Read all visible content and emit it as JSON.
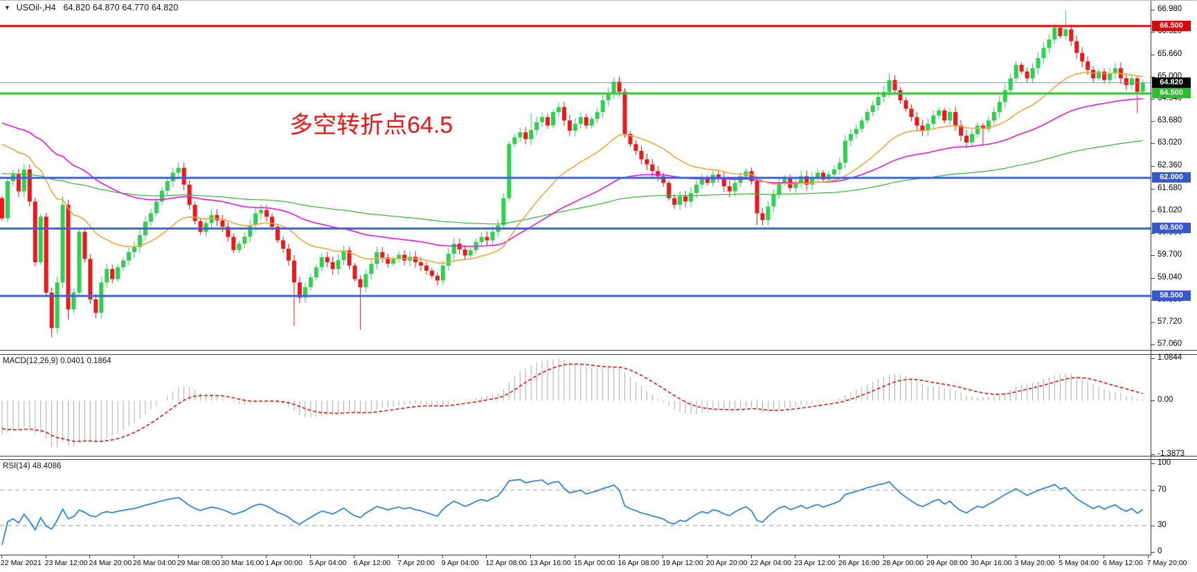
{
  "header": {
    "symbol": "USOil-,H4",
    "quotes": "64.820 64.870 64.770 64.820",
    "dropdown_icon": "symbol-dropdown-icon"
  },
  "annotation": {
    "text": "多空转折点64.5",
    "color": "#F21414"
  },
  "macd": {
    "label": "MACD(12,26,9) 0.0401 0.1864"
  },
  "rsi": {
    "label": "RSI(14) 48.4086"
  },
  "chart_data": [
    {
      "type": "candlestick",
      "title": "USOil-,H4",
      "timeframe": "H4",
      "ylim": [
        56.9,
        67.25
      ],
      "first_open": 61.4,
      "closes": [
        60.8,
        61.9,
        62.1,
        61.6,
        62.25,
        61.3,
        59.5,
        60.85,
        58.6,
        57.55,
        58.9,
        61.2,
        58.1,
        58.6,
        60.4,
        59.6,
        58.4,
        58.0,
        58.9,
        59.3,
        59.0,
        59.35,
        59.55,
        59.8,
        59.95,
        60.3,
        60.7,
        60.95,
        61.3,
        61.62,
        61.9,
        62.15,
        62.3,
        61.8,
        61.2,
        60.72,
        60.4,
        60.66,
        60.9,
        60.74,
        60.55,
        60.25,
        59.86,
        60.05,
        60.26,
        60.6,
        60.95,
        61.05,
        60.85,
        60.55,
        60.15,
        59.9,
        59.55,
        58.9,
        58.45,
        58.76,
        59.05,
        59.35,
        59.65,
        59.5,
        59.3,
        59.56,
        59.85,
        59.4,
        59.0,
        58.76,
        59.15,
        59.45,
        59.8,
        59.64,
        59.46,
        59.6,
        59.72,
        59.55,
        59.66,
        59.5,
        59.4,
        59.25,
        59.1,
        58.96,
        59.4,
        59.75,
        60.05,
        59.88,
        59.7,
        59.86,
        60.1,
        60.25,
        60.15,
        60.4,
        60.6,
        61.4,
        63.0,
        63.2,
        63.35,
        63.15,
        63.42,
        63.65,
        63.8,
        63.55,
        63.95,
        64.1,
        63.7,
        63.4,
        63.6,
        63.8,
        63.55,
        63.75,
        63.95,
        64.3,
        64.5,
        64.85,
        64.55,
        63.3,
        63.0,
        62.8,
        62.55,
        62.4,
        62.2,
        62.05,
        61.85,
        61.4,
        61.2,
        61.45,
        61.3,
        61.55,
        61.8,
        62.0,
        61.85,
        62.1,
        62.0,
        61.75,
        61.6,
        61.85,
        62.05,
        62.2,
        61.9,
        60.95,
        60.75,
        61.15,
        61.5,
        61.85,
        62.0,
        61.7,
        61.85,
        62.05,
        61.8,
        62.0,
        62.15,
        61.95,
        62.1,
        62.25,
        62.45,
        63.1,
        63.3,
        63.45,
        63.7,
        63.95,
        64.15,
        64.4,
        64.55,
        64.9,
        64.6,
        64.3,
        64.05,
        63.8,
        63.55,
        63.4,
        63.6,
        63.85,
        64.0,
        63.7,
        63.95,
        63.55,
        63.25,
        63.05,
        63.3,
        63.55,
        63.45,
        63.7,
        63.95,
        64.25,
        64.6,
        64.95,
        65.35,
        65.15,
        64.95,
        65.25,
        65.55,
        65.85,
        66.1,
        66.45,
        66.2,
        66.4,
        66.05,
        65.7,
        65.45,
        65.2,
        64.95,
        65.15,
        64.9,
        65.1,
        65.25,
        64.95,
        64.75,
        64.95,
        64.55,
        64.82
      ],
      "wick_overrides": {
        "9": [
          null,
          57.28
        ],
        "11": [
          61.45,
          null
        ],
        "12": [
          null,
          57.8
        ],
        "53": [
          null,
          57.62
        ],
        "65": [
          null,
          57.5
        ],
        "79": [
          null,
          58.8
        ],
        "96": [
          63.92,
          null
        ],
        "111": [
          64.97,
          null
        ],
        "137": [
          null,
          60.6
        ],
        "161": [
          65.1,
          null
        ],
        "178": [
          null,
          62.95
        ],
        "193": [
          66.96,
          null
        ],
        "206": [
          null,
          63.92
        ]
      },
      "warmup_anchors": [
        [
          0,
          57.2
        ],
        [
          70,
          59.8
        ],
        [
          100,
          65.2
        ],
        [
          125,
          66.3
        ],
        [
          150,
          63.2
        ],
        [
          159,
          61.5
        ]
      ],
      "bull_color": "#2BD34F",
      "bear_color": "#F01818",
      "moving_averages": [
        {
          "name": "ma-green",
          "period": 160,
          "color": "#33B333",
          "width": 1.2
        },
        {
          "name": "ma-magenta",
          "period": 60,
          "color": "#E816E8",
          "width": 1.6
        },
        {
          "name": "ma-orange",
          "period": 24,
          "color": "#F5A63C",
          "width": 1.6
        }
      ],
      "hlines": [
        {
          "price": 66.5,
          "color": "#E81717",
          "width": 3,
          "badge": "66.500",
          "badge_bg": "#D60A0A"
        },
        {
          "price": 64.5,
          "color": "#2FCC2F",
          "width": 3,
          "badge": "64.500",
          "badge_bg": "#2DBE2D"
        },
        {
          "price": 62.0,
          "color": "#3C64D8",
          "width": 3,
          "badge": "62.000",
          "badge_bg": "#3557CF"
        },
        {
          "price": 60.5,
          "color": "#3C64D8",
          "width": 3,
          "badge": "60.500",
          "badge_bg": "#3557CF"
        },
        {
          "price": 58.5,
          "color": "#3C64D8",
          "width": 3,
          "badge": "58.500",
          "badge_bg": "#3557CF"
        }
      ],
      "bid_line": {
        "price": 64.82,
        "badge": "64.820",
        "line_color": "#8C9196",
        "badge_bg": "#000000"
      },
      "y_ticks": [
        [
          "66.980",
          66.98
        ],
        [
          "66.320",
          66.32
        ],
        [
          "65.660",
          65.66
        ],
        [
          "65.000",
          65.0
        ],
        [
          "64.340",
          64.34
        ],
        [
          "63.680",
          63.68
        ],
        [
          "63.020",
          63.02
        ],
        [
          "62.360",
          62.36
        ],
        [
          "61.680",
          61.68
        ],
        [
          "61.020",
          61.02
        ],
        [
          "60.360",
          60.36
        ],
        [
          "59.700",
          59.7
        ],
        [
          "59.040",
          59.04
        ],
        [
          "58.380",
          58.38
        ],
        [
          "57.720",
          57.72
        ],
        [
          "57.060",
          57.06
        ]
      ],
      "x_labels": [
        "22 Mar 2021",
        "23 Mar 12:00",
        "24 Mar 20:00",
        "26 Mar 04:00",
        "29 Mar 08:00",
        "30 Mar 16:00",
        "1 Apr 00:00",
        "5 Apr 04:00",
        "6 Apr 12:00",
        "7 Apr 20:00",
        "9 Apr 04:00",
        "12 Apr 08:00",
        "13 Apr 16:00",
        "15 Apr 00:00",
        "16 Apr 08:00",
        "19 Apr 12:00",
        "20 Apr 20:00",
        "22 Apr 04:00",
        "23 Apr 12:00",
        "26 Apr 16:00",
        "28 Apr 00:00",
        "29 Apr 08:00",
        "30 Apr 16:00",
        "3 May 20:00",
        "5 May 04:00",
        "6 May 12:00",
        "7 May 20:00"
      ],
      "bars_per_label": 8
    },
    {
      "type": "macd",
      "label": "MACD(12,26,9) 0.0401 0.1864",
      "params": {
        "fast": 12,
        "slow": 26,
        "signal": 9
      },
      "display_values": {
        "main": "0.0401",
        "signal": "0.1864"
      },
      "ylim": [
        -1.42,
        1.18
      ],
      "scale_max": 1.0844,
      "y_ticks": [
        [
          "1.0844",
          1.0844
        ],
        [
          "0.00",
          0
        ],
        [
          "-1.3873",
          -1.3873
        ]
      ],
      "colors": {
        "histogram": "#ABABAB",
        "signal": "#E02424"
      }
    },
    {
      "type": "rsi",
      "label": "RSI(14) 48.4086",
      "period": 14,
      "display_value": "48.4086",
      "ylim": [
        -3,
        104
      ],
      "levels": [
        70,
        30
      ],
      "y_ticks": [
        [
          "100",
          100
        ],
        [
          "70",
          70
        ],
        [
          "30",
          30
        ],
        [
          "0",
          0
        ]
      ],
      "color": "#2E86E0",
      "level_color": "#B8B8B8"
    }
  ]
}
